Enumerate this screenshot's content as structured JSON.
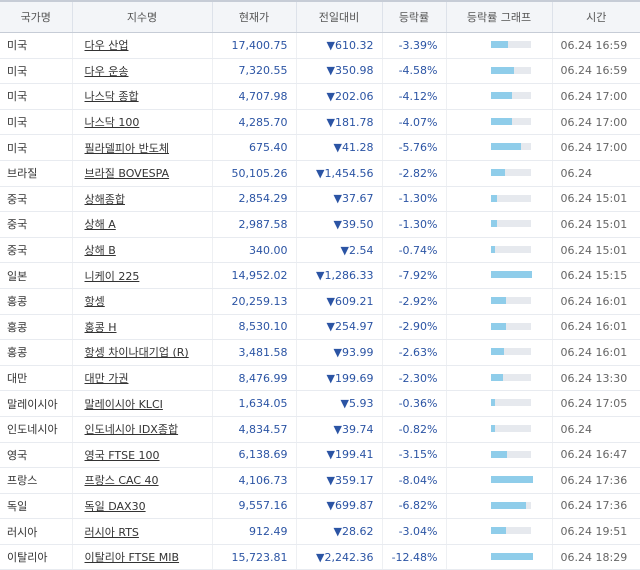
{
  "headers": [
    "국가명",
    "지수명",
    "현재가",
    "전일대비",
    "등락률",
    "등락률 그래프",
    "시간"
  ],
  "down_arrow": "▼",
  "colors": {
    "down": "#2b54a4",
    "bar": "#8fcdea",
    "bar_bg": "#e6e9ee"
  },
  "rows": [
    {
      "country": "미국",
      "index": "다우 산업",
      "price": "17,400.75",
      "change": "610.32",
      "rate": "-3.39%",
      "bar": 3.39,
      "time": "06.24 16:59"
    },
    {
      "country": "미국",
      "index": "다우 운송",
      "price": "7,320.55",
      "change": "350.98",
      "rate": "-4.58%",
      "bar": 4.58,
      "time": "06.24 16:59"
    },
    {
      "country": "미국",
      "index": "나스닥 종합",
      "price": "4,707.98",
      "change": "202.06",
      "rate": "-4.12%",
      "bar": 4.12,
      "time": "06.24 17:00"
    },
    {
      "country": "미국",
      "index": "나스닥 100",
      "price": "4,285.70",
      "change": "181.78",
      "rate": "-4.07%",
      "bar": 4.07,
      "time": "06.24 17:00"
    },
    {
      "country": "미국",
      "index": "필라델피아 반도체",
      "price": "675.40",
      "change": "41.28",
      "rate": "-5.76%",
      "bar": 5.76,
      "time": "06.24 17:00"
    },
    {
      "country": "브라질",
      "index": "브라질 BOVESPA",
      "price": "50,105.26",
      "change": "1,454.56",
      "rate": "-2.82%",
      "bar": 2.82,
      "time": "06.24"
    },
    {
      "country": "중국",
      "index": "상해종합",
      "price": "2,854.29",
      "change": "37.67",
      "rate": "-1.30%",
      "bar": 1.3,
      "time": "06.24 15:01",
      "sep": true
    },
    {
      "country": "중국",
      "index": "상해 A",
      "price": "2,987.58",
      "change": "39.50",
      "rate": "-1.30%",
      "bar": 1.3,
      "time": "06.24 15:01"
    },
    {
      "country": "중국",
      "index": "상해 B",
      "price": "340.00",
      "change": "2.54",
      "rate": "-0.74%",
      "bar": 0.74,
      "time": "06.24 15:01"
    },
    {
      "country": "일본",
      "index": "니케이 225",
      "price": "14,952.02",
      "change": "1,286.33",
      "rate": "-7.92%",
      "bar": 7.92,
      "time": "06.24 15:15"
    },
    {
      "country": "홍콩",
      "index": "항셍",
      "price": "20,259.13",
      "change": "609.21",
      "rate": "-2.92%",
      "bar": 2.92,
      "time": "06.24 16:01"
    },
    {
      "country": "홍콩",
      "index": "홍콩 H",
      "price": "8,530.10",
      "change": "254.97",
      "rate": "-2.90%",
      "bar": 2.9,
      "time": "06.24 16:01"
    },
    {
      "country": "홍콩",
      "index": "항셍 차이나대기업 (R)",
      "price": "3,481.58",
      "change": "93.99",
      "rate": "-2.63%",
      "bar": 2.63,
      "time": "06.24 16:01"
    },
    {
      "country": "대만",
      "index": "대만 가권",
      "price": "8,476.99",
      "change": "199.69",
      "rate": "-2.30%",
      "bar": 2.3,
      "time": "06.24 13:30"
    },
    {
      "country": "말레이시아",
      "index": "말레이시아 KLCI",
      "price": "1,634.05",
      "change": "5.93",
      "rate": "-0.36%",
      "bar": 0.36,
      "time": "06.24 17:05"
    },
    {
      "country": "인도네시아",
      "index": "인도네시아 IDX종합",
      "price": "4,834.57",
      "change": "39.74",
      "rate": "-0.82%",
      "bar": 0.82,
      "time": "06.24"
    },
    {
      "country": "영국",
      "index": "영국 FTSE 100",
      "price": "6,138.69",
      "change": "199.41",
      "rate": "-3.15%",
      "bar": 3.15,
      "time": "06.24 16:47",
      "sep": true
    },
    {
      "country": "프랑스",
      "index": "프랑스 CAC 40",
      "price": "4,106.73",
      "change": "359.17",
      "rate": "-8.04%",
      "bar": 8.04,
      "time": "06.24 17:36"
    },
    {
      "country": "독일",
      "index": "독일 DAX30",
      "price": "9,557.16",
      "change": "699.87",
      "rate": "-6.82%",
      "bar": 6.82,
      "time": "06.24 17:36"
    },
    {
      "country": "러시아",
      "index": "러시아 RTS",
      "price": "912.49",
      "change": "28.62",
      "rate": "-3.04%",
      "bar": 3.04,
      "time": "06.24 19:51"
    },
    {
      "country": "이탈리아",
      "index": "이탈리아 FTSE MIB",
      "price": "15,723.81",
      "change": "2,242.36",
      "rate": "-12.48%",
      "bar": 12.48,
      "time": "06.24 18:29"
    }
  ]
}
